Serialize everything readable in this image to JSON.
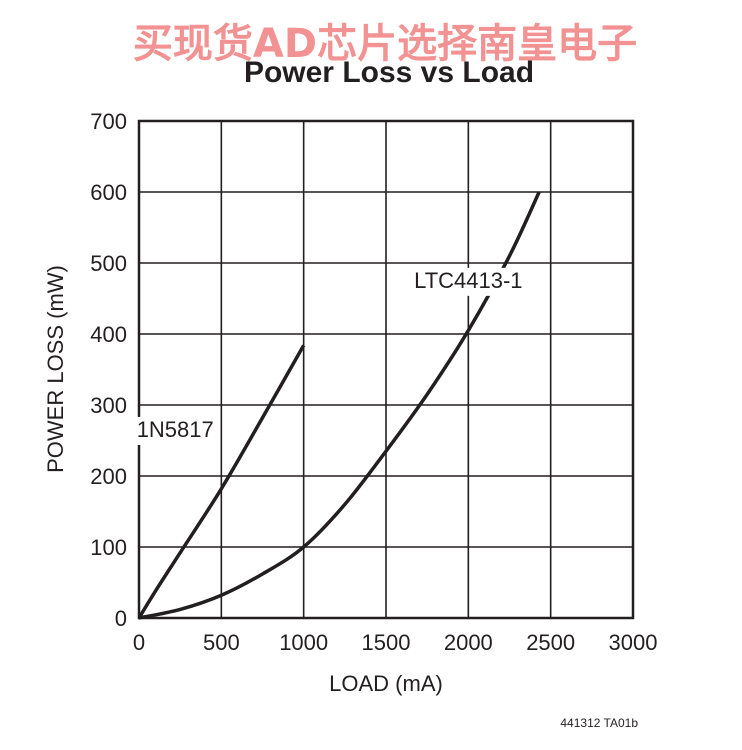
{
  "watermark": "买现货AD芯片选择南皇电子",
  "footer_code": "441312 TA01b",
  "colors": {
    "watermark": "#f08080",
    "ink": "#231f20",
    "grid": "#231f20"
  },
  "chart_data": {
    "type": "line",
    "title": "Power Loss vs Load",
    "xlabel": "LOAD (mA)",
    "ylabel": "POWER LOSS (mW)",
    "xlim": [
      0,
      3000
    ],
    "ylim": [
      0,
      700
    ],
    "xticks": [
      0,
      500,
      1000,
      1500,
      2000,
      2500,
      3000
    ],
    "yticks": [
      0,
      100,
      200,
      300,
      400,
      500,
      600,
      700
    ],
    "grid": true,
    "series": [
      {
        "name": "1N5817",
        "x": [
          0,
          100,
          250,
          500,
          750,
          1000
        ],
        "y": [
          0,
          38,
          92,
          182,
          282,
          384
        ]
      },
      {
        "name": "LTC4413-1",
        "x": [
          0,
          250,
          500,
          750,
          1000,
          1250,
          1500,
          1750,
          2000,
          2250,
          2430
        ],
        "y": [
          0,
          12,
          32,
          62,
          100,
          160,
          235,
          315,
          405,
          510,
          600
        ]
      }
    ],
    "annotations": [
      {
        "text": "1N5817",
        "x": 220,
        "y": 255
      },
      {
        "text": "LTC4413-1",
        "x": 2000,
        "y": 465
      }
    ]
  }
}
